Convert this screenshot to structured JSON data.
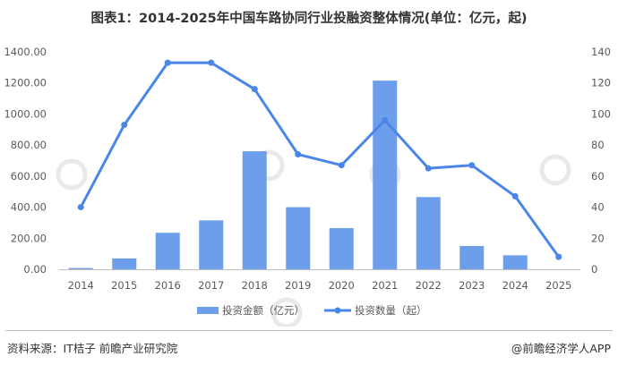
{
  "title": "图表1：2014-2025年中国车路协同行业投融资整体情况(单位：亿元，起)",
  "footer": {
    "source": "资料来源：IT桔子 前瞻产业研究院",
    "brand": "@前瞻经济学人APP"
  },
  "colors": {
    "bar": "#6d9eeb",
    "line": "#4a86e8",
    "axis": "#bfbfbf",
    "text": "#595959"
  },
  "chart_data": {
    "type": "bar",
    "categories": [
      "2014",
      "2015",
      "2016",
      "2017",
      "2018",
      "2019",
      "2020",
      "2021",
      "2022",
      "2023",
      "2024",
      "2025"
    ],
    "series": [
      {
        "name": "投资金额（亿元）",
        "type": "bar",
        "axis": "left",
        "values": [
          8,
          70,
          235,
          315,
          760,
          400,
          265,
          1215,
          465,
          150,
          90,
          0
        ]
      },
      {
        "name": "投资数量（起）",
        "type": "line",
        "axis": "right",
        "values": [
          40,
          93,
          133,
          133,
          116,
          74,
          67,
          96,
          65,
          67,
          47,
          8
        ]
      }
    ],
    "y_left": {
      "min": 0,
      "max": 1400,
      "ticks": [
        "0.00",
        "200.00",
        "400.00",
        "600.00",
        "800.00",
        "1000.00",
        "1200.00",
        "1400.00"
      ]
    },
    "y_right": {
      "min": 0,
      "max": 140,
      "ticks": [
        "0",
        "20",
        "40",
        "60",
        "80",
        "100",
        "120",
        "140"
      ]
    },
    "grid": false,
    "legend_position": "bottom"
  }
}
